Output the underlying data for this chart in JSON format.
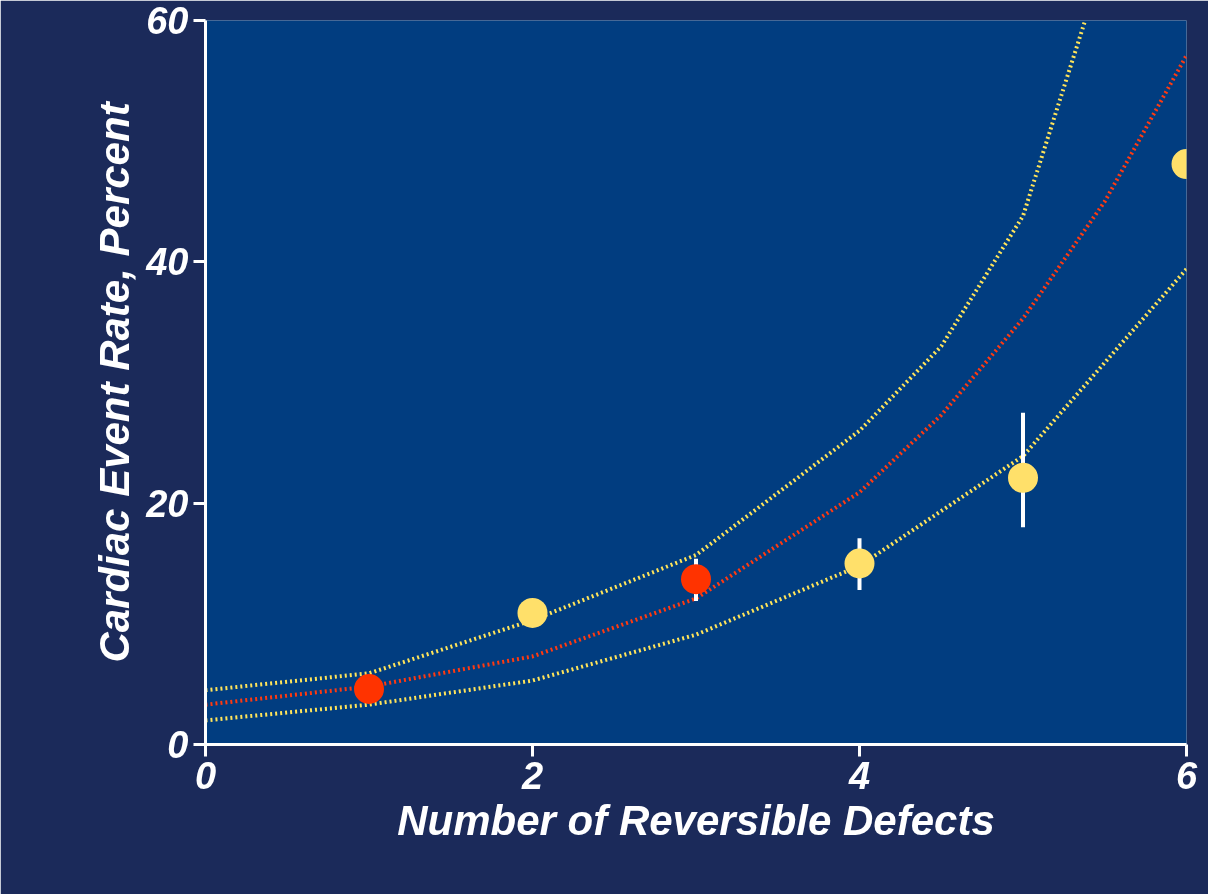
{
  "chart_data": {
    "type": "scatter",
    "xlabel": "Number of Reversible Defects",
    "ylabel": "Cardiac Event Rate, Percent",
    "xlim": [
      0,
      6
    ],
    "ylim": [
      0,
      60
    ],
    "xticks": [
      0,
      2,
      4,
      6
    ],
    "yticks": [
      0,
      20,
      40,
      60
    ],
    "grid": false,
    "series": [
      {
        "type": "line",
        "color": "#ffe45a",
        "line_style": "dotted",
        "x": [
          0,
          1,
          2,
          3,
          4,
          4.5,
          5,
          5.38
        ],
        "values": [
          4.5,
          5.9,
          10.3,
          15.7,
          26.0,
          33.0,
          43.8,
          60.0
        ]
      },
      {
        "type": "line",
        "color": "#ff3a10",
        "line_style": "dotted",
        "x": [
          0,
          1,
          2,
          3,
          4,
          4.5,
          5,
          5.5,
          6
        ],
        "values": [
          3.3,
          4.8,
          7.3,
          12.1,
          20.9,
          27.3,
          35.3,
          45.0,
          57.1
        ]
      },
      {
        "type": "line",
        "color": "#ffe45a",
        "line_style": "dotted",
        "x": [
          0,
          1,
          2,
          3,
          4,
          5,
          6
        ],
        "values": [
          2.0,
          3.3,
          5.3,
          9.1,
          14.8,
          23.9,
          39.4
        ]
      },
      {
        "marker": "circle",
        "color": "#ff3300",
        "x": [
          1,
          3
        ],
        "values": [
          4.6,
          13.7
        ],
        "errors": [
          null,
          [
            11.9,
            15.4
          ]
        ]
      },
      {
        "marker": "circle",
        "color": "#ffe06a",
        "x": [
          2,
          4,
          5,
          6
        ],
        "values": [
          10.9,
          15.0,
          22.1,
          48.1
        ],
        "errors": [
          null,
          [
            12.8,
            17.1
          ],
          [
            18.0,
            27.5
          ],
          null
        ]
      }
    ]
  }
}
